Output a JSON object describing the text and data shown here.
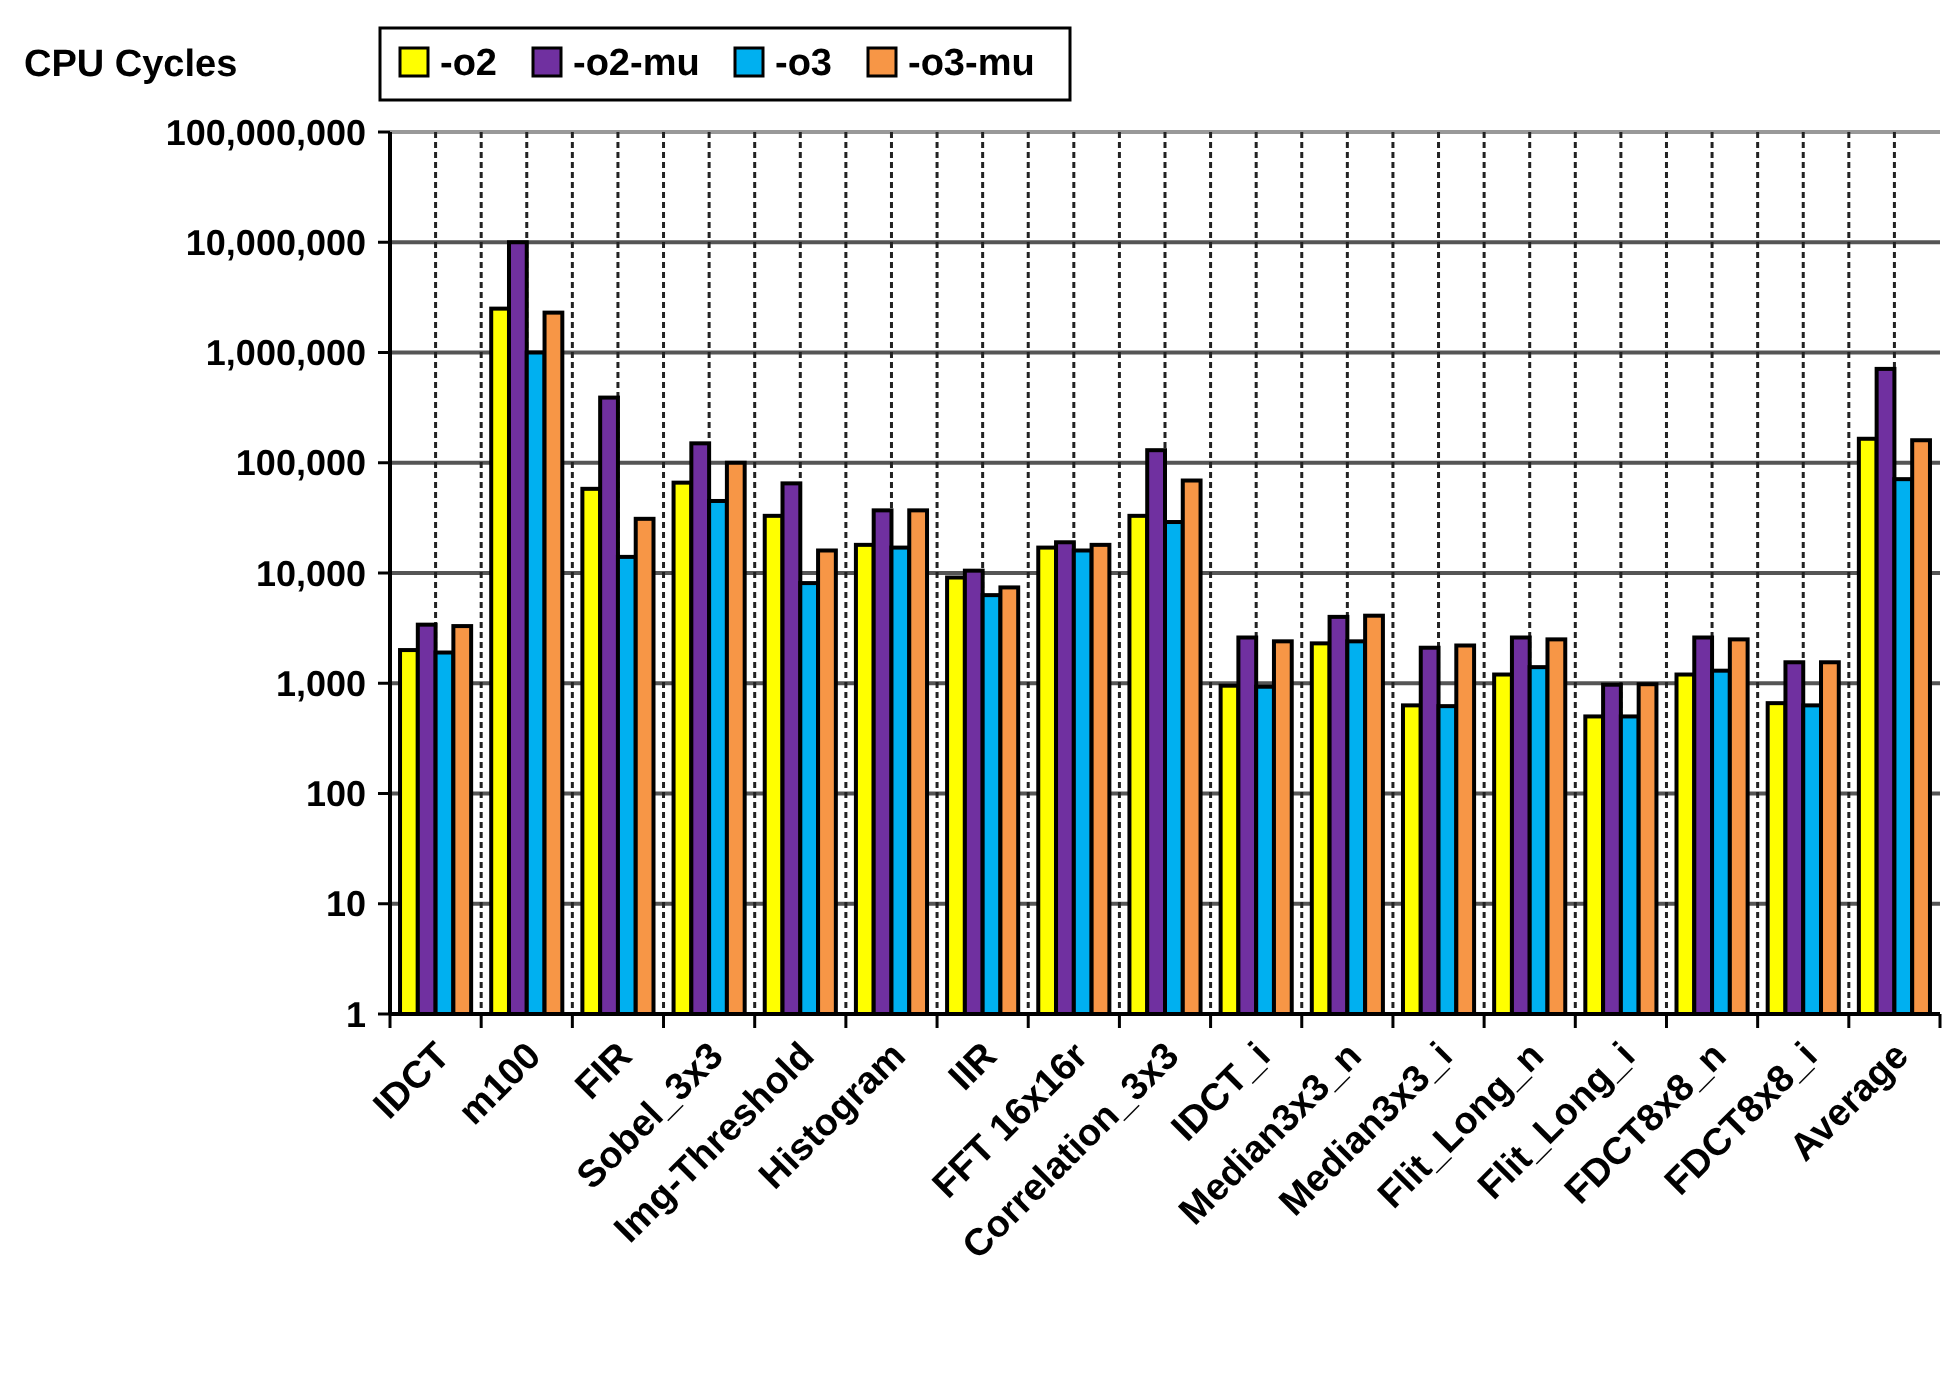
{
  "chart_data": {
    "type": "bar",
    "ylabel": "CPU Cycles",
    "log": true,
    "grid": true,
    "legend": "top",
    "categories": [
      "IDCT",
      "m100",
      "FIR",
      "Sobel_3x3",
      "Img-Threshold",
      "Histogram",
      "IIR",
      "FFT 16x16r",
      "Correlation_3x3",
      "IDCT_i",
      "Median3x3_n",
      "Median3x3_i",
      "Flit_Long_n",
      "Flit_Long_i",
      "FDCT8x8_n",
      "FDCT8x8_i",
      "Average"
    ],
    "ylim": [
      1,
      100000000
    ],
    "yticks": [
      {
        "value": 1,
        "label": "1"
      },
      {
        "value": 10,
        "label": "10"
      },
      {
        "value": 100,
        "label": "100"
      },
      {
        "value": 1000,
        "label": "1,000"
      },
      {
        "value": 10000,
        "label": "10,000"
      },
      {
        "value": 100000,
        "label": "100,000"
      },
      {
        "value": 1000000,
        "label": "1,000,000"
      },
      {
        "value": 10000000,
        "label": "10,000,000"
      },
      {
        "value": 100000000,
        "label": "100,000,000"
      }
    ],
    "series": [
      {
        "name": "-o2",
        "color": "#ffff00",
        "values": [
          2000,
          2500000,
          58000,
          66000,
          33000,
          18000,
          9100,
          17000,
          33000,
          950,
          2300,
          630,
          1200,
          500,
          1200,
          660,
          165000
        ]
      },
      {
        "name": "-o2-mu",
        "color": "#7030a0",
        "values": [
          3400,
          10000000,
          390000,
          150000,
          65000,
          37000,
          10500,
          19000,
          130000,
          2600,
          4000,
          2100,
          2600,
          970,
          2600,
          1550,
          710000
        ]
      },
      {
        "name": "-o3",
        "color": "#00b0f0",
        "values": [
          1900,
          1000000,
          14000,
          45000,
          8100,
          17000,
          6300,
          16000,
          29000,
          930,
          2400,
          620,
          1400,
          500,
          1300,
          630,
          71000
        ]
      },
      {
        "name": "-o3-mu",
        "color": "#f79646",
        "values": [
          3300,
          2300000,
          31000,
          100000,
          16000,
          37000,
          7400,
          18000,
          69000,
          2400,
          4100,
          2200,
          2500,
          980,
          2500,
          1550,
          160000
        ]
      }
    ]
  }
}
